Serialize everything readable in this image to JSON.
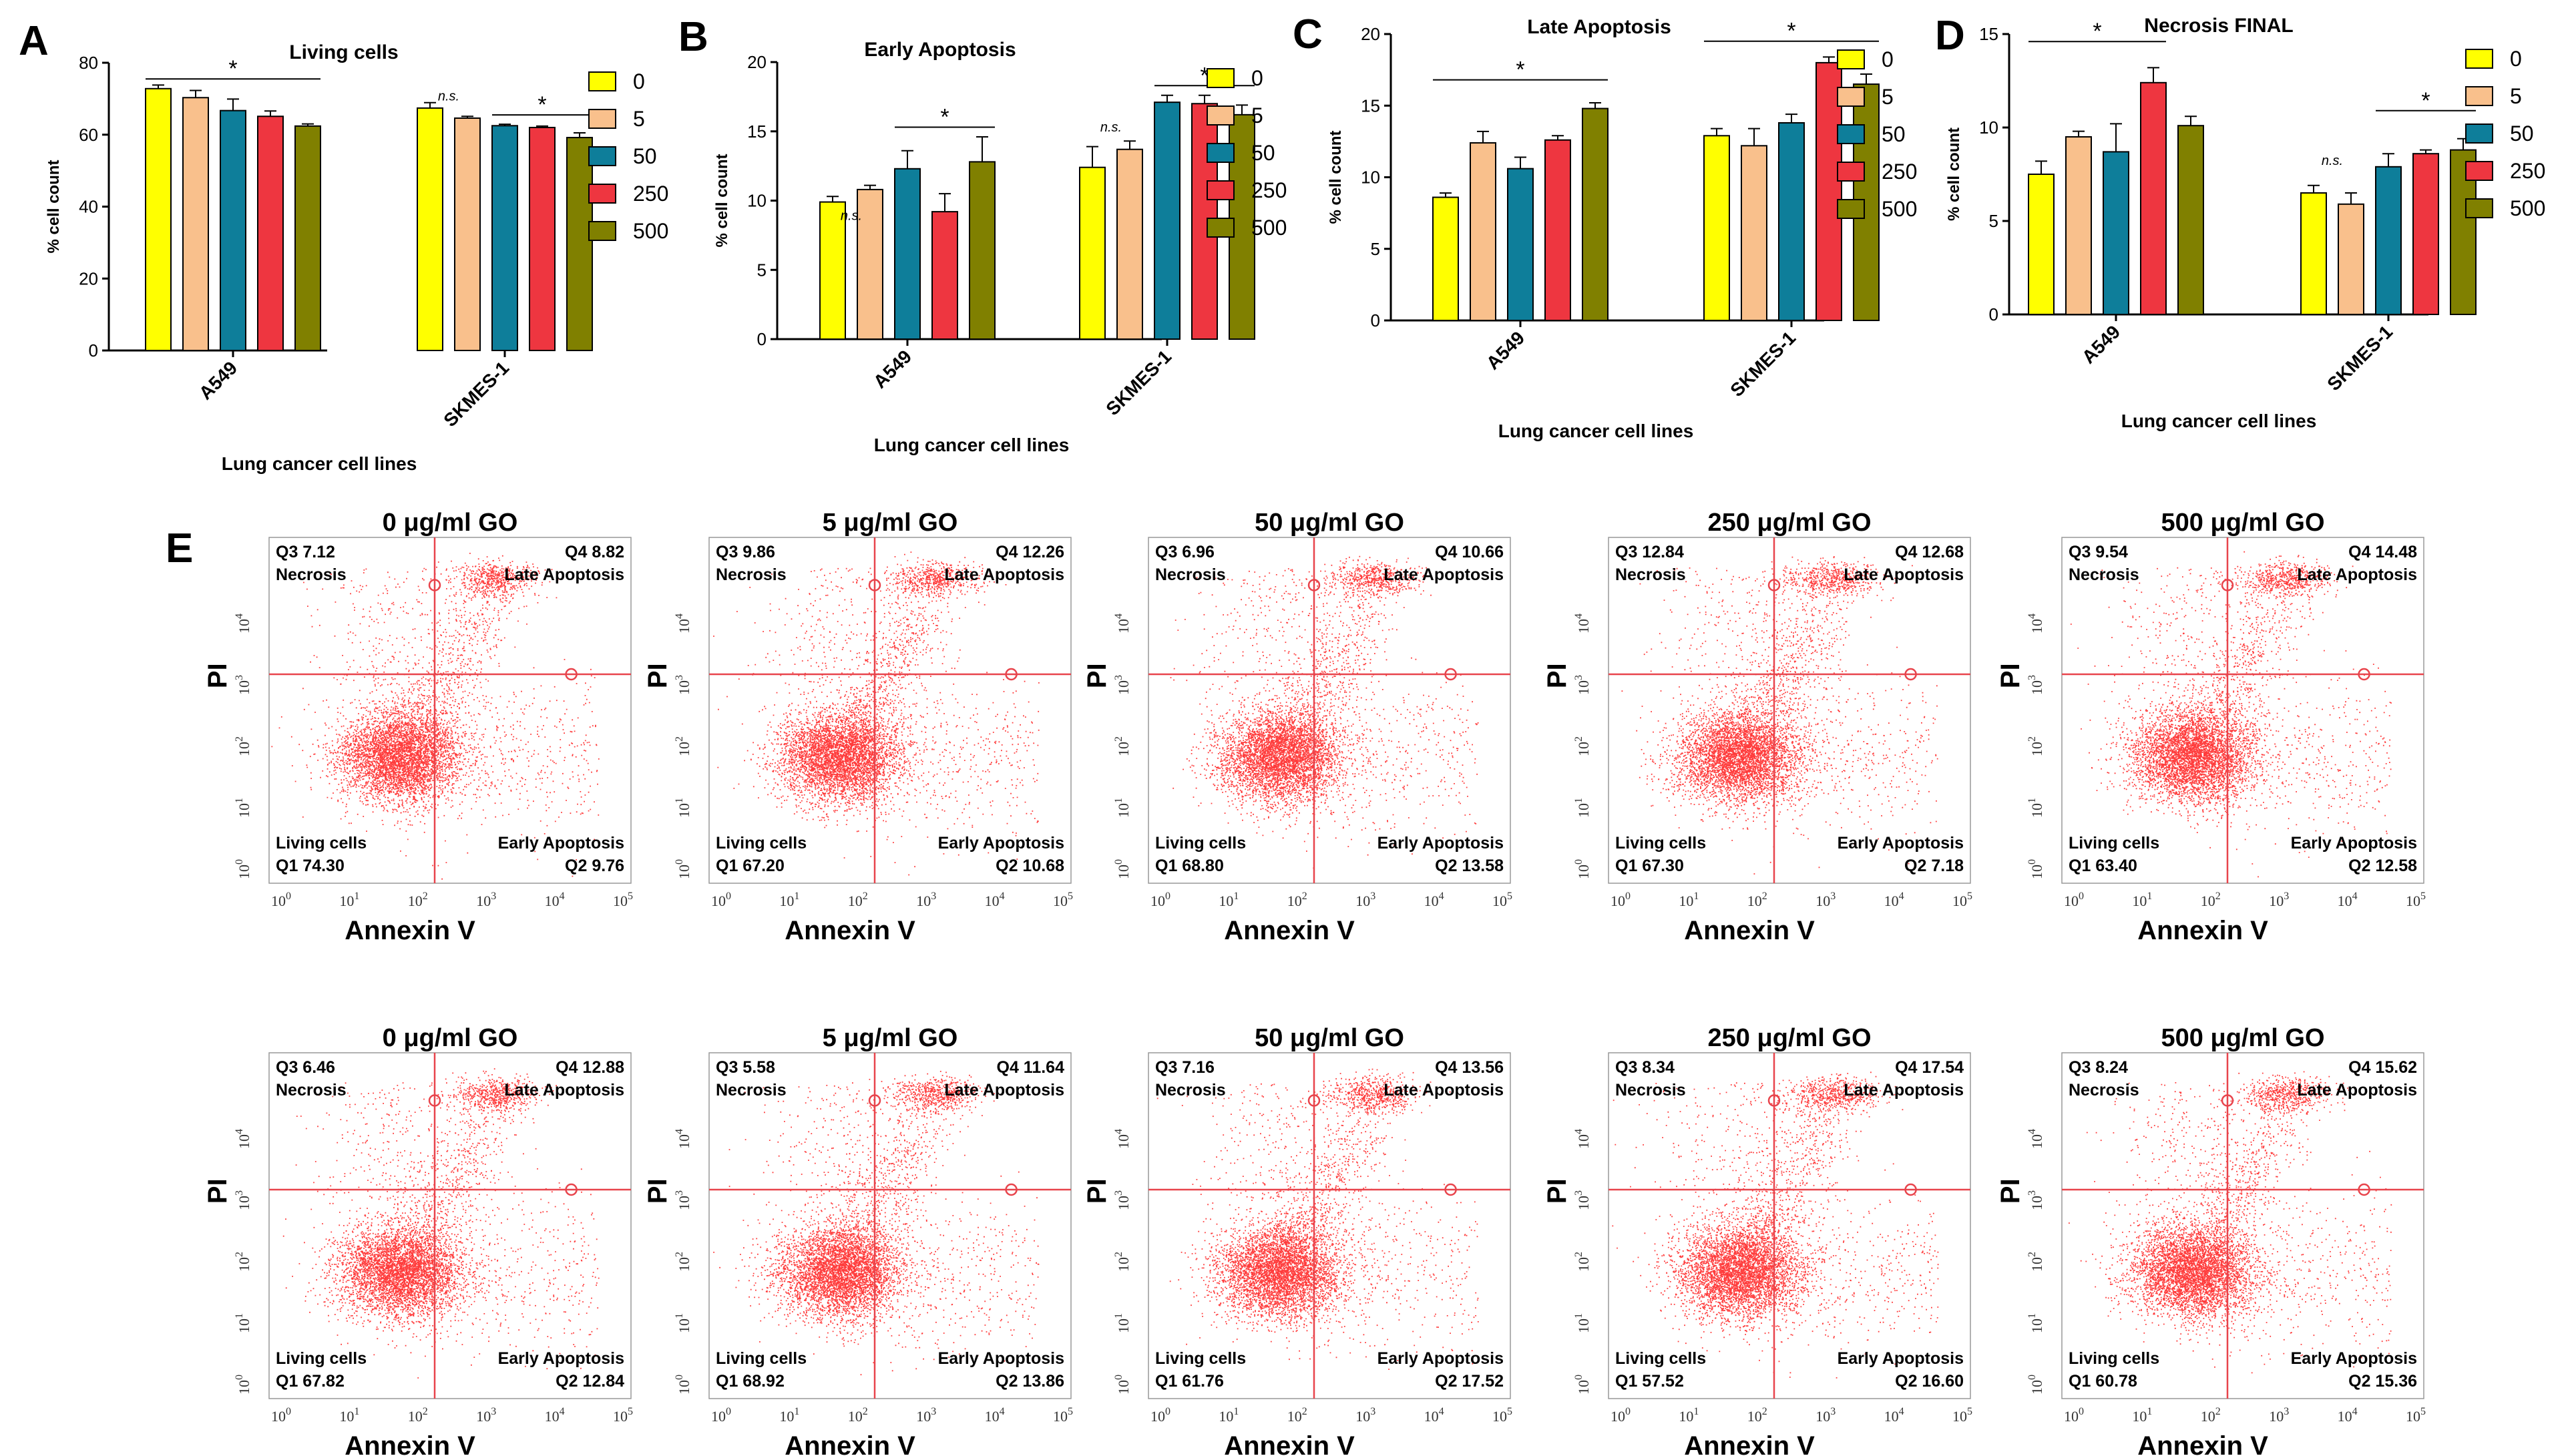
{
  "panel_e_letter": "E",
  "colors": {
    "series": [
      "#ffff00",
      "#f9c08c",
      "#0e7e9a",
      "#ee3640",
      "#808000"
    ],
    "quadrant_line": "#e8444c",
    "dot": "#ff1a1a"
  },
  "legend_labels": [
    "0",
    "5",
    "50",
    "250",
    "500"
  ],
  "chart_data": [
    {
      "type": "bar",
      "panel": "A",
      "title": "Living cells",
      "xlabel": "Lung cancer cell lines",
      "ylabel": "% cell count",
      "ylim": [
        0,
        80
      ],
      "yticks": [
        "0",
        "20",
        "40",
        "60",
        "80"
      ],
      "categories": [
        "A549",
        "SKMES-1"
      ],
      "series": [
        {
          "name": "0",
          "values": [
            72.8,
            67.4
          ],
          "errors": [
            1.0,
            1.5
          ]
        },
        {
          "name": "5",
          "values": [
            70.3,
            64.6
          ],
          "errors": [
            2.0,
            0.5
          ]
        },
        {
          "name": "50",
          "values": [
            66.7,
            62.5
          ],
          "errors": [
            3.2,
            0.4
          ]
        },
        {
          "name": "250",
          "values": [
            65.1,
            62.0
          ],
          "errors": [
            1.5,
            0.4
          ]
        },
        {
          "name": "500",
          "values": [
            62.4,
            59.2
          ],
          "errors": [
            0.6,
            1.3
          ]
        }
      ],
      "annotations": [
        {
          "group": 0,
          "from": 0,
          "to": 4,
          "level": 75.5,
          "text": "*"
        },
        {
          "group": 1,
          "from": 0,
          "to": 1,
          "level": 69.5,
          "text": "n.s."
        },
        {
          "group": 1,
          "from": 2,
          "to": 4,
          "level": 65.5,
          "text": "*"
        }
      ]
    },
    {
      "type": "bar",
      "panel": "B",
      "title": "Early Apoptosis",
      "xlabel": "Lung cancer cell lines",
      "ylabel": "% cell count",
      "ylim": [
        0,
        20
      ],
      "yticks": [
        "0",
        "5",
        "10",
        "15",
        "20"
      ],
      "categories": [
        "A549",
        "SKMES-1"
      ],
      "series": [
        {
          "name": "0",
          "values": [
            9.9,
            12.4
          ],
          "errors": [
            0.4,
            1.5
          ]
        },
        {
          "name": "5",
          "values": [
            10.8,
            13.7
          ],
          "errors": [
            0.3,
            0.6
          ]
        },
        {
          "name": "50",
          "values": [
            12.3,
            17.1
          ],
          "errors": [
            1.3,
            0.5
          ]
        },
        {
          "name": "250",
          "values": [
            9.2,
            17.0
          ],
          "errors": [
            1.3,
            0.6
          ]
        },
        {
          "name": "500",
          "values": [
            12.8,
            16.2
          ],
          "errors": [
            1.8,
            0.7
          ]
        }
      ],
      "annotations": [
        {
          "group": 0,
          "from": 0,
          "to": 1,
          "level": 8.6,
          "text": "n.s."
        },
        {
          "group": 0,
          "from": 2,
          "to": 4,
          "level": 15.3,
          "text": "*"
        },
        {
          "group": 1,
          "from": 0,
          "to": 1,
          "level": 15.0,
          "text": "n.s."
        },
        {
          "group": 1,
          "from": 2,
          "to": 4,
          "level": 18.3,
          "text": "*"
        }
      ]
    },
    {
      "type": "bar",
      "panel": "C",
      "title": "Late Apoptosis",
      "xlabel": "Lung cancer cell lines",
      "ylabel": "% cell count",
      "ylim": [
        0,
        20
      ],
      "yticks": [
        "0",
        "5",
        "10",
        "15",
        "20"
      ],
      "categories": [
        "A549",
        "SKMES-1"
      ],
      "series": [
        {
          "name": "0",
          "values": [
            8.6,
            12.9
          ],
          "errors": [
            0.3,
            0.5
          ]
        },
        {
          "name": "5",
          "values": [
            12.4,
            12.2
          ],
          "errors": [
            0.8,
            1.2
          ]
        },
        {
          "name": "50",
          "values": [
            10.6,
            13.8
          ],
          "errors": [
            0.8,
            0.6
          ]
        },
        {
          "name": "250",
          "values": [
            12.6,
            18.0
          ],
          "errors": [
            0.3,
            0.4
          ]
        },
        {
          "name": "500",
          "values": [
            14.8,
            16.5
          ],
          "errors": [
            0.4,
            0.7
          ]
        }
      ],
      "annotations": [
        {
          "group": 0,
          "from": 0,
          "to": 4,
          "level": 16.8,
          "text": "*"
        },
        {
          "group": 1,
          "from": 0,
          "to": 4,
          "level": 19.5,
          "text": "*"
        }
      ]
    },
    {
      "type": "bar",
      "panel": "D",
      "title": "Necrosis FINAL",
      "xlabel": "Lung cancer cell lines",
      "ylabel": "% cell count",
      "ylim": [
        0,
        15
      ],
      "yticks": [
        "0",
        "5",
        "10",
        "15"
      ],
      "categories": [
        "A549",
        "SKMES-1"
      ],
      "series": [
        {
          "name": "0",
          "values": [
            7.5,
            6.5
          ],
          "errors": [
            0.7,
            0.4
          ]
        },
        {
          "name": "5",
          "values": [
            9.5,
            5.9
          ],
          "errors": [
            0.3,
            0.6
          ]
        },
        {
          "name": "50",
          "values": [
            8.7,
            7.9
          ],
          "errors": [
            1.5,
            0.7
          ]
        },
        {
          "name": "250",
          "values": [
            12.4,
            8.6
          ],
          "errors": [
            0.8,
            0.2
          ]
        },
        {
          "name": "500",
          "values": [
            10.1,
            8.8
          ],
          "errors": [
            0.5,
            0.6
          ]
        }
      ],
      "annotations": [
        {
          "group": 0,
          "from": 0,
          "to": 3,
          "level": 14.6,
          "text": "*"
        },
        {
          "group": 1,
          "from": 0,
          "to": 1,
          "level": 8.0,
          "text": "n.s."
        },
        {
          "group": 1,
          "from": 2,
          "to": 4,
          "level": 10.9,
          "text": "*"
        }
      ]
    },
    {
      "type": "scatter",
      "panel": "E",
      "description": "Annexin V / PI flow cytometry quadrant plots, A549 (top row) and SKMES-1 (bottom row)",
      "xlabel": "Annexin V",
      "ylabel": "PI",
      "x_ticks": [
        "10",
        "10",
        "10",
        "10",
        "10",
        "10"
      ],
      "x_tick_exponents": [
        "0",
        "1",
        "2",
        "3",
        "4",
        "5"
      ],
      "y_ticks": [
        "10",
        "10",
        "10",
        "10",
        "10"
      ],
      "y_tick_exponents": [
        "0",
        "1",
        "2",
        "3",
        "4"
      ],
      "quadrant_labels": {
        "necrosis": "Necrosis",
        "late": "Late  Apoptosis",
        "living": "Living cells",
        "early": "Early Apoptosis"
      },
      "plots": [
        {
          "title": "0 μg/ml GO",
          "q3": "Q3 7.12",
          "q4": "Q4 8.82",
          "q1": "Q1 74.30",
          "q2": "Q2 9.76"
        },
        {
          "title": "5 μg/ml GO",
          "q3": "Q3 9.86",
          "q4": "Q4 12.26",
          "q1": "Q1 67.20",
          "q2": "Q2 10.68"
        },
        {
          "title": "50 μg/ml GO",
          "q3": "Q3 6.96",
          "q4": "Q4 10.66",
          "q1": "Q1 68.80",
          "q2": "Q2 13.58"
        },
        {
          "title": "250 μg/ml GO",
          "q3": "Q3 12.84",
          "q4": "Q4 12.68",
          "q1": "Q1 67.30",
          "q2": "Q2 7.18"
        },
        {
          "title": "500 μg/ml GO",
          "q3": "Q3 9.54",
          "q4": "Q4 14.48",
          "q1": "Q1 63.40",
          "q2": "Q2 12.58"
        },
        {
          "title": "0 μg/ml GO",
          "q3": "Q3 6.46",
          "q4": "Q4 12.88",
          "q1": "Q1 67.82",
          "q2": "Q2 12.84"
        },
        {
          "title": "5 μg/ml GO",
          "q3": "Q3 5.58",
          "q4": "Q4 11.64",
          "q1": "Q1 68.92",
          "q2": "Q2 13.86"
        },
        {
          "title": "50 μg/ml GO",
          "q3": "Q3 7.16",
          "q4": "Q4 13.56",
          "q1": "Q1 61.76",
          "q2": "Q2 17.52"
        },
        {
          "title": "250 μg/ml GO",
          "q3": "Q3 8.34",
          "q4": "Q4 17.54",
          "q1": "Q1 57.52",
          "q2": "Q2 16.60"
        },
        {
          "title": "500 μg/ml GO",
          "q3": "Q3 8.24",
          "q4": "Q4 15.62",
          "q1": "Q1 60.78",
          "q2": "Q2 15.36"
        }
      ]
    }
  ]
}
